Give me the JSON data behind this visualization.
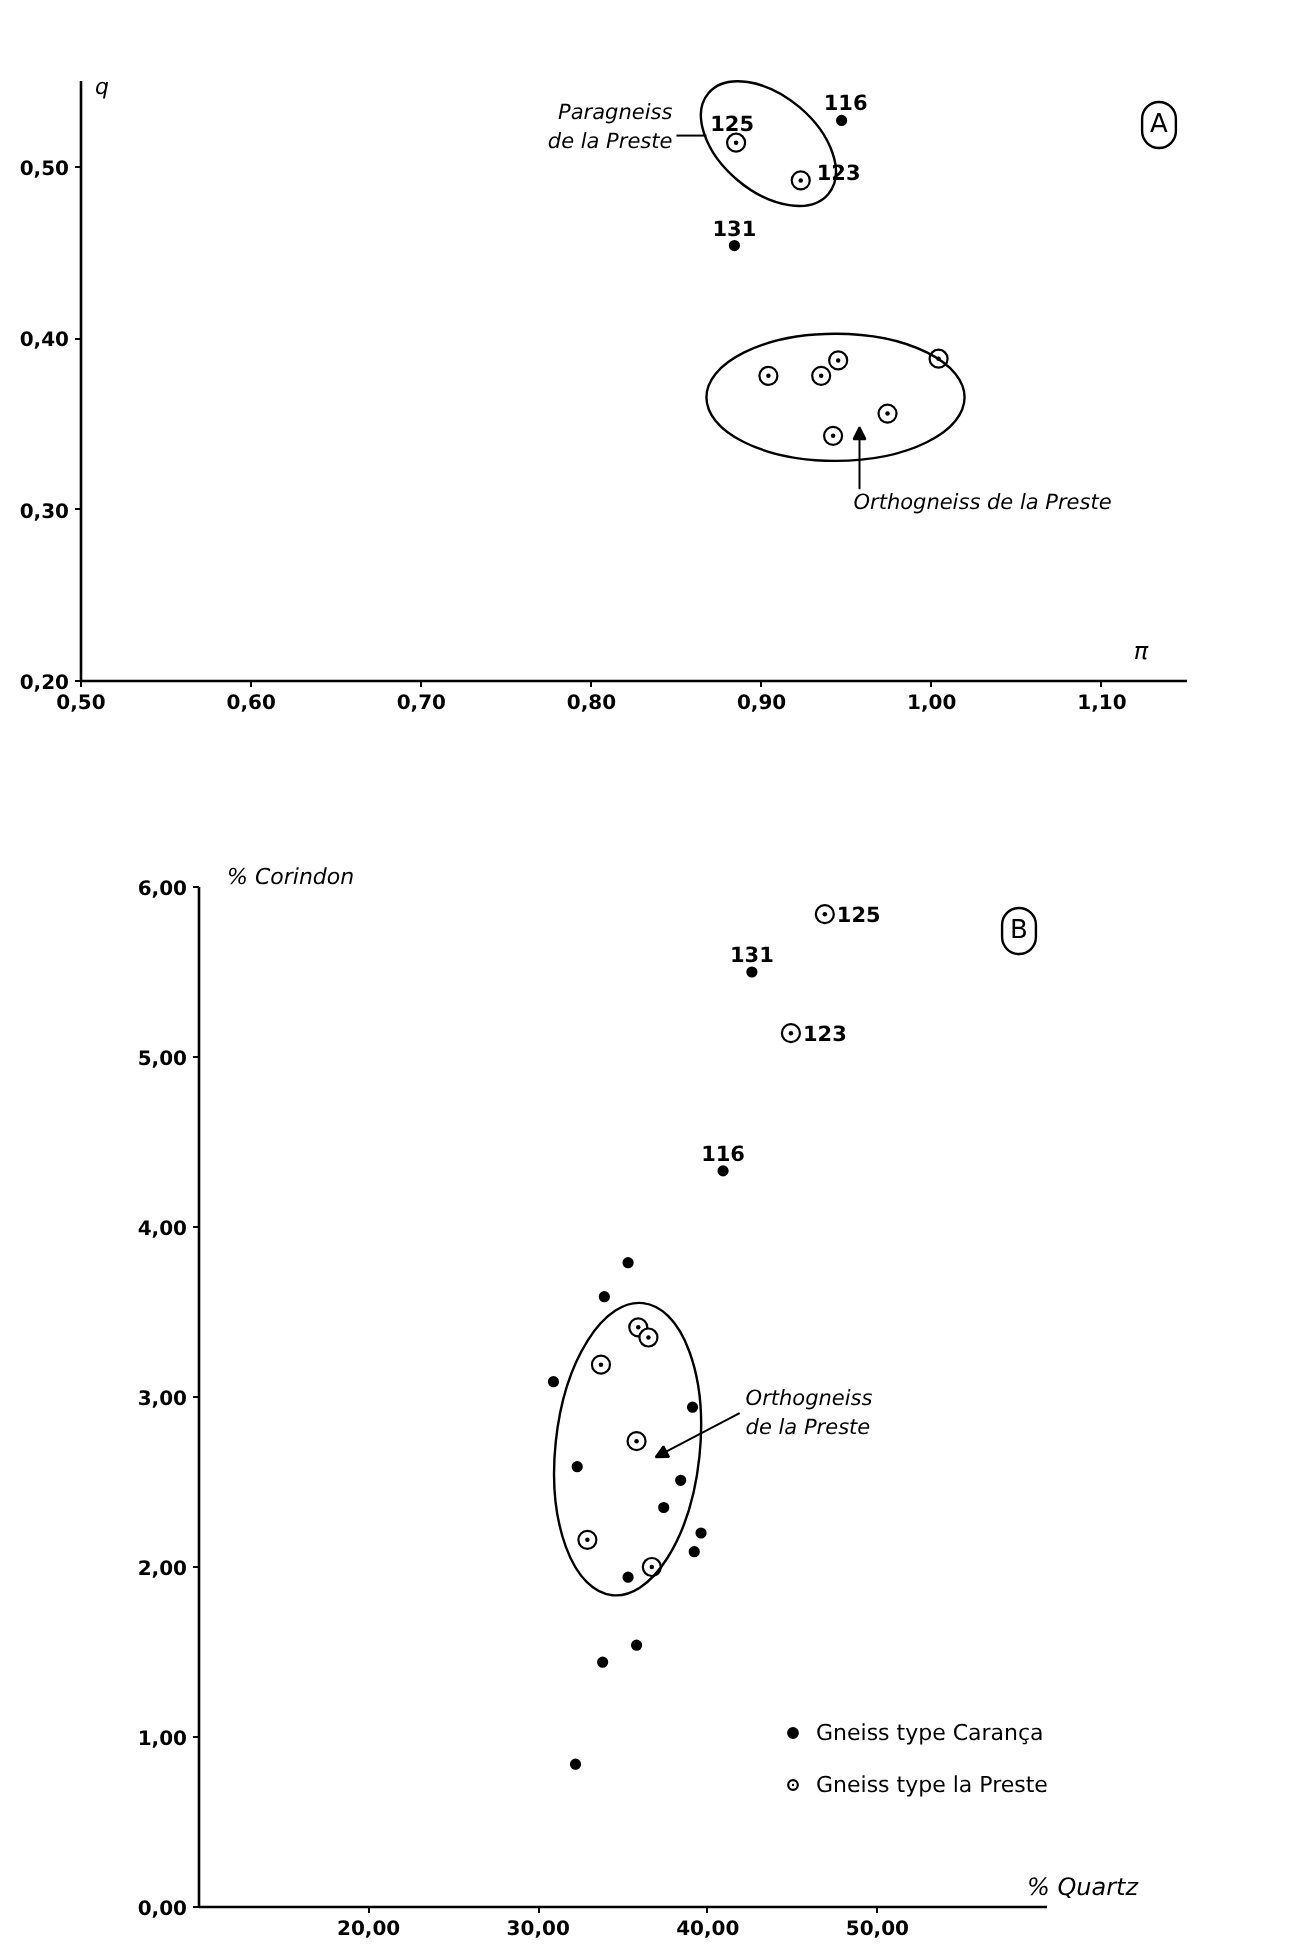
{
  "chart_data": [
    {
      "type": "scatter",
      "title": "A",
      "xlabel": "π",
      "ylabel": "q",
      "xlim": [
        0.5,
        1.15
      ],
      "ylim": [
        0.2,
        0.55
      ],
      "xticks": [
        {
          "value": 0.5,
          "label": "0,50"
        },
        {
          "value": 0.6,
          "label": "0,60"
        },
        {
          "value": 0.7,
          "label": "0,70"
        },
        {
          "value": 0.8,
          "label": "0,80"
        },
        {
          "value": 0.9,
          "label": "0,90"
        },
        {
          "value": 1.0,
          "label": "1,00"
        },
        {
          "value": 1.1,
          "label": "1,10"
        }
      ],
      "yticks": [
        {
          "value": 0.2,
          "label": "0,20"
        },
        {
          "value": 0.3,
          "label": "0,30"
        },
        {
          "value": 0.4,
          "label": "0,40"
        },
        {
          "value": 0.5,
          "label": "0,50"
        }
      ],
      "series": [
        {
          "color": "#000000",
          "marker": "circle",
          "x": [
            0.947,
            0.884
          ],
          "values": [
            0.527,
            0.454
          ]
        },
        {
          "color": "#000000",
          "marker": "circle_dot",
          "x": [
            0.885,
            0.923,
            0.904,
            0.935,
            0.945,
            1.004,
            0.974,
            0.942
          ],
          "values": [
            0.514,
            0.492,
            0.378,
            0.378,
            0.387,
            0.388,
            0.356,
            0.343
          ]
        }
      ],
      "annotations": [
        "Paragneiss\nde la Preste",
        {
          "text": "125",
          "x": 0.885,
          "y": 0.514
        },
        {
          "text": "116",
          "x": 0.947,
          "y": 0.527
        },
        {
          "text": "123",
          "x": 0.923,
          "y": 0.492
        },
        {
          "text": "131",
          "x": 0.884,
          "y": 0.454
        },
        "Orthogneiss  de la Preste"
      ]
    },
    {
      "type": "scatter",
      "title": "B",
      "xlabel": "% Quartz",
      "ylabel": "% Corindon",
      "xlim": [
        10,
        60
      ],
      "ylim": [
        0,
        6
      ],
      "xticks": [
        {
          "value": 20,
          "label": "20,00"
        },
        {
          "value": 30,
          "label": "30,00"
        },
        {
          "value": 40,
          "label": "40,00"
        },
        {
          "value": 50,
          "label": "50,00"
        }
      ],
      "yticks": [
        {
          "value": 0,
          "label": "0,00"
        },
        {
          "value": 1,
          "label": "1,00"
        },
        {
          "value": 2,
          "label": "2,00"
        },
        {
          "value": 3,
          "label": "3,00"
        },
        {
          "value": 4,
          "label": "4,00"
        },
        {
          "value": 5,
          "label": "5,00"
        },
        {
          "value": 6,
          "label": "6,00"
        }
      ],
      "legend": "bottom right",
      "series": [
        {
          "name": "Gneiss type Carança",
          "color": "#000000",
          "marker": "circle",
          "x": [
            42.6,
            40.9,
            35.3,
            33.9,
            30.9,
            39.1,
            32.3,
            38.4,
            37.4,
            39.6,
            39.2,
            35.3,
            35.8,
            33.8,
            32.2
          ],
          "values": [
            5.5,
            4.33,
            3.79,
            3.59,
            3.09,
            2.94,
            2.59,
            2.51,
            2.35,
            2.2,
            2.09,
            1.94,
            1.54,
            1.44,
            0.84
          ]
        },
        {
          "name": "Gneiss type la Preste",
          "color": "#000000",
          "marker": "circle_dot",
          "x": [
            46.9,
            44.9,
            35.9,
            36.5,
            33.7,
            35.8,
            32.9,
            36.7
          ],
          "values": [
            5.84,
            5.14,
            3.41,
            3.35,
            3.19,
            2.74,
            2.16,
            2.0
          ]
        }
      ],
      "annotations": [
        {
          "text": "125",
          "x": 46.9,
          "y": 5.84
        },
        {
          "text": "131",
          "x": 42.6,
          "y": 5.5
        },
        {
          "text": "123",
          "x": 44.9,
          "y": 5.14
        },
        {
          "text": "116",
          "x": 40.9,
          "y": 4.33
        },
        "Orthogneiss\nde la Preste"
      ]
    }
  ]
}
